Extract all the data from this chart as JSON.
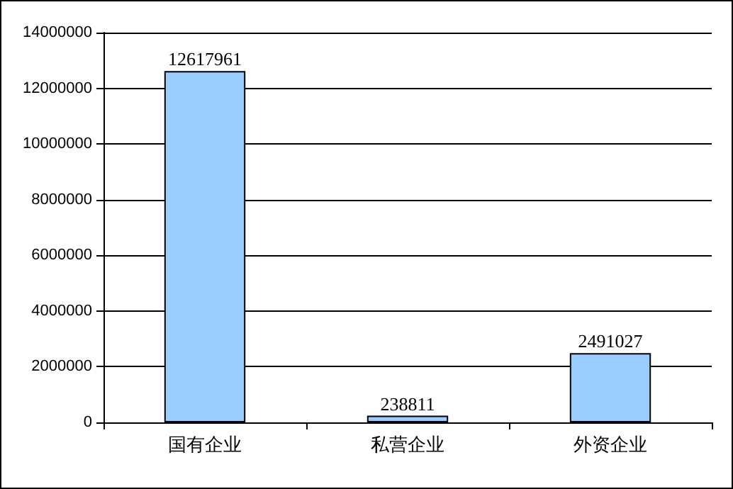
{
  "chart_data": {
    "type": "bar",
    "categories": [
      "国有企业",
      "私营企业",
      "外资企业"
    ],
    "values": [
      12617961,
      238811,
      2491027
    ],
    "color": "#99ccff",
    "ylim": [
      0,
      14000000
    ],
    "yticks": [
      0,
      2000000,
      4000000,
      6000000,
      8000000,
      10000000,
      12000000,
      14000000
    ],
    "grid": "y",
    "data_labels": true
  }
}
